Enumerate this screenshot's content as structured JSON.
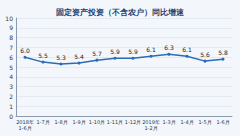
{
  "chart_data": {
    "type": "line",
    "title": "固定资产投资（不含农户）同比增速",
    "categories": [
      "2018年\n1-6月",
      "1-7月",
      "1-8月",
      "1-9月",
      "1-10月",
      "1-11月",
      "1-12月",
      "2019年\n1-2月",
      "1-3月",
      "1-4月",
      "1-5月",
      "1-6月"
    ],
    "values": [
      6.0,
      5.5,
      5.3,
      5.4,
      5.7,
      5.9,
      5.9,
      6.1,
      6.3,
      6.1,
      5.6,
      5.8
    ],
    "value_labels": [
      "6.0",
      "5.5",
      "5.3",
      "5.4",
      "5.7",
      "5.9",
      "5.9",
      "6.1",
      "6.3",
      "6.1",
      "5.6",
      "5.8"
    ],
    "color": "#2b6cb5",
    "marker": "circle",
    "ylim": [
      0,
      10
    ],
    "yticks": [
      0,
      1,
      2,
      3,
      4,
      5,
      6,
      7,
      8,
      9,
      10
    ],
    "grid": true,
    "data_labels": true
  }
}
